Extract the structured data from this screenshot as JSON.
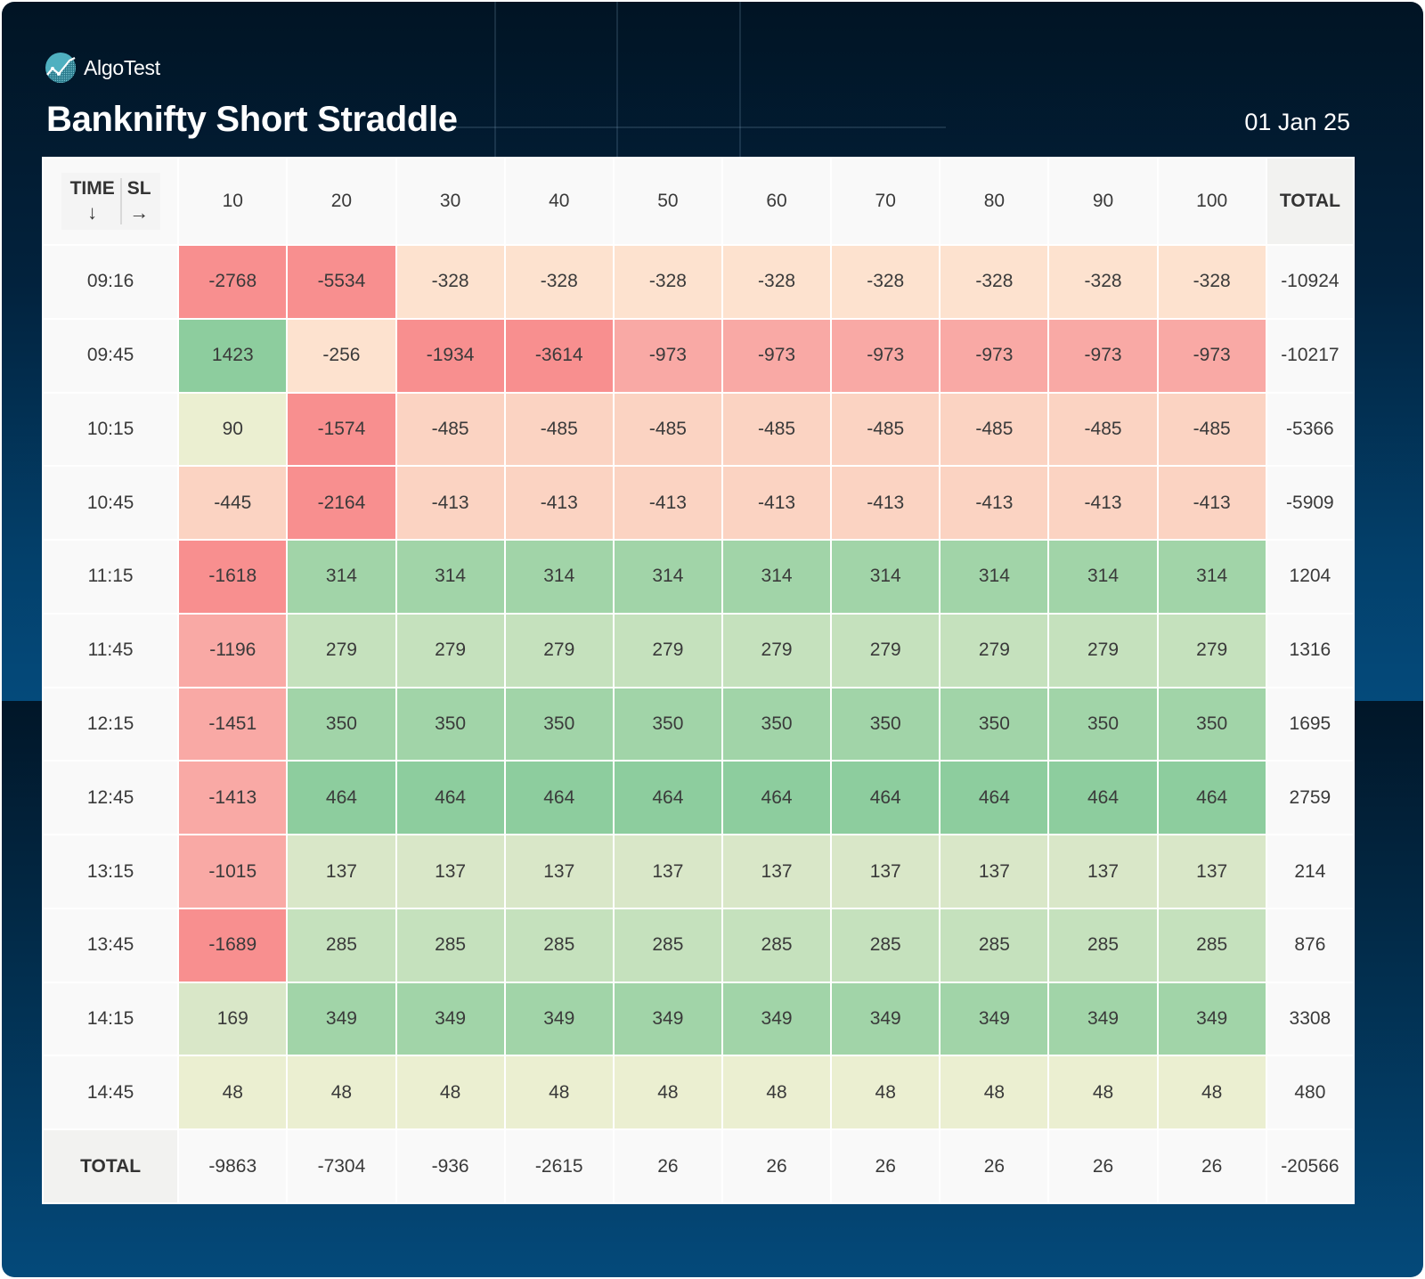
{
  "brand": {
    "name": "AlgoTest",
    "logo_icon": "algotest-logo-icon"
  },
  "header": {
    "title": "Banknifty Short Straddle",
    "date": "01 Jan 25"
  },
  "colors": {
    "negative_strong": "#f88f8f",
    "negative_medium": "#f9a9a5",
    "negative_light": "#fbd3c2",
    "negative_faint": "#fde2cf",
    "neutral": "#ebefd1",
    "positive_faint": "#d9e7c8",
    "positive_light": "#c5e1bd",
    "positive_medium": "#a1d4a8",
    "positive_strong": "#8dcd9e"
  },
  "table": {
    "corner": {
      "row_axis_label": "TIME",
      "row_axis_arrow": "↓",
      "col_axis_label": "SL",
      "col_axis_arrow": "→"
    },
    "total_label": "TOTAL"
  },
  "chart_data": {
    "type": "heatmap",
    "title": "Banknifty Short Straddle",
    "subtitle": "01 Jan 25",
    "xlabel": "SL",
    "ylabel": "TIME",
    "x": [
      "10",
      "20",
      "30",
      "40",
      "50",
      "60",
      "70",
      "80",
      "90",
      "100"
    ],
    "y": [
      "09:16",
      "09:45",
      "10:15",
      "10:45",
      "11:15",
      "11:45",
      "12:15",
      "12:45",
      "13:15",
      "13:45",
      "14:15",
      "14:45"
    ],
    "values": [
      [
        -2768,
        -5534,
        -328,
        -328,
        -328,
        -328,
        -328,
        -328,
        -328,
        -328
      ],
      [
        1423,
        -256,
        -1934,
        -3614,
        -973,
        -973,
        -973,
        -973,
        -973,
        -973
      ],
      [
        90,
        -1574,
        -485,
        -485,
        -485,
        -485,
        -485,
        -485,
        -485,
        -485
      ],
      [
        -445,
        -2164,
        -413,
        -413,
        -413,
        -413,
        -413,
        -413,
        -413,
        -413
      ],
      [
        -1618,
        314,
        314,
        314,
        314,
        314,
        314,
        314,
        314,
        314
      ],
      [
        -1196,
        279,
        279,
        279,
        279,
        279,
        279,
        279,
        279,
        279
      ],
      [
        -1451,
        350,
        350,
        350,
        350,
        350,
        350,
        350,
        350,
        350
      ],
      [
        -1413,
        464,
        464,
        464,
        464,
        464,
        464,
        464,
        464,
        464
      ],
      [
        -1015,
        137,
        137,
        137,
        137,
        137,
        137,
        137,
        137,
        137
      ],
      [
        -1689,
        285,
        285,
        285,
        285,
        285,
        285,
        285,
        285,
        285
      ],
      [
        169,
        349,
        349,
        349,
        349,
        349,
        349,
        349,
        349,
        349
      ],
      [
        48,
        48,
        48,
        48,
        48,
        48,
        48,
        48,
        48,
        48
      ]
    ],
    "row_totals": [
      -10924,
      -10217,
      -5366,
      -5909,
      1204,
      1316,
      1695,
      2759,
      214,
      876,
      3308,
      480
    ],
    "column_totals": [
      -9863,
      -7304,
      -936,
      -2615,
      26,
      26,
      26,
      26,
      26,
      26
    ],
    "grand_total": -20566
  }
}
